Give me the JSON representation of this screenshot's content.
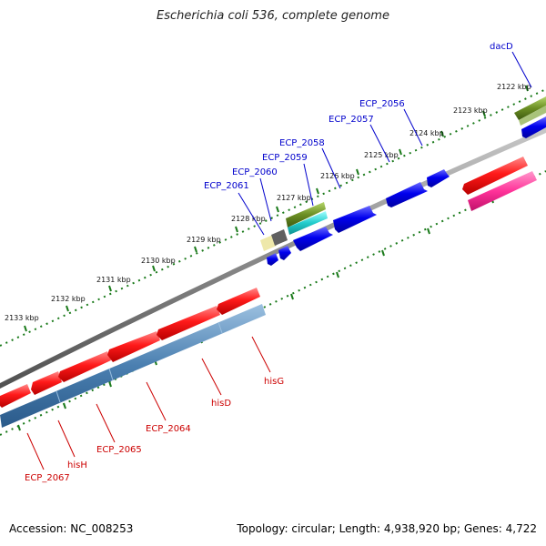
{
  "title": "Escherichia coli 536, complete genome",
  "accession": "Accession: NC_008253",
  "summary": "Topology: circular; Length: 4,938,920 bp; Genes: 4,722",
  "colors": {
    "backbone": "#808080",
    "forward_cds": "#0000ee",
    "reverse_cds": "#ee1111",
    "reverse_feature": "#4a7fb0",
    "forward_label": "#0000cc",
    "reverse_label": "#cc0000",
    "tick": "#1a7a1a",
    "dacD_feature": "#6b8e23",
    "magenta_feature": "#ff3399",
    "cyan_feature": "#22cccc",
    "tan_feature": "#eee8aa",
    "grey_feature": "#606060"
  },
  "kbp_markers": [
    "2122 kbp",
    "2123 kbp",
    "2124 kbp",
    "2125 kbp",
    "2126 kbp",
    "2127 kbp",
    "2128 kbp",
    "2129 kbp",
    "2130 kbp",
    "2131 kbp",
    "2132 kbp",
    "2133 kbp"
  ],
  "forward_genes": [
    "dacD",
    "ECP_2056",
    "ECP_2057",
    "ECP_2058",
    "ECP_2059",
    "ECP_2060",
    "ECP_2061"
  ],
  "reverse_genes": [
    "hisG",
    "hisD",
    "ECP_2064",
    "ECP_2065",
    "hisH",
    "ECP_2067"
  ]
}
